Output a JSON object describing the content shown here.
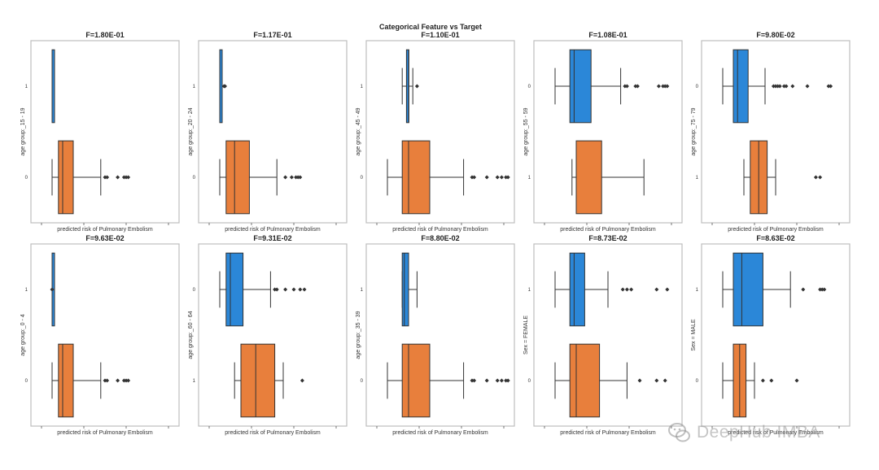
{
  "chart_data": {
    "suptitle": "Categorical Feature vs Target",
    "type": "boxplot",
    "orientation": "horizontal",
    "colors": {
      "first_category": "#2b87d8",
      "second_category": "#e87f3c"
    },
    "panels": [
      {
        "title": "F=1.80E-01",
        "xlabel": "predicted risk of Pulmonary Embolism",
        "ylabel": "age group:_15 - 19",
        "categories": [
          {
            "label": "1",
            "color": "#2b87d8",
            "wlo": 0.05,
            "q1": 0.05,
            "med": 0.05,
            "q3": 0.06,
            "whi": 0.06,
            "fliers": []
          },
          {
            "label": "0",
            "color": "#e87f3c",
            "wlo": 0.05,
            "q1": 0.08,
            "med": 0.1,
            "q3": 0.15,
            "whi": 0.28,
            "fliers": [
              0.3,
              0.31,
              0.36,
              0.39,
              0.4,
              0.41
            ]
          }
        ]
      },
      {
        "title": "F=1.17E-01",
        "xlabel": "predicted risk of Pulmonary Embolism",
        "ylabel": "age group:_20 - 24",
        "categories": [
          {
            "label": "1",
            "color": "#2b87d8",
            "wlo": 0.05,
            "q1": 0.05,
            "med": 0.05,
            "q3": 0.06,
            "whi": 0.06,
            "fliers": [
              0.07,
              0.075
            ]
          },
          {
            "label": "0",
            "color": "#e87f3c",
            "wlo": 0.05,
            "q1": 0.08,
            "med": 0.12,
            "q3": 0.19,
            "whi": 0.32,
            "fliers": [
              0.36,
              0.39,
              0.41,
              0.42,
              0.43
            ]
          }
        ]
      },
      {
        "title": "F=1.10E-01",
        "xlabel": "predicted risk of Pulmonary Embolism",
        "ylabel": "age group:_45 - 49",
        "categories": [
          {
            "label": "1",
            "color": "#2b87d8",
            "wlo": 0.12,
            "q1": 0.14,
            "med": 0.15,
            "q3": 0.15,
            "whi": 0.17,
            "fliers": [
              0.19
            ]
          },
          {
            "label": "0",
            "color": "#e87f3c",
            "wlo": 0.05,
            "q1": 0.12,
            "med": 0.15,
            "q3": 0.25,
            "whi": 0.41,
            "fliers": [
              0.45,
              0.46,
              0.52,
              0.57,
              0.59,
              0.61,
              0.62
            ]
          }
        ]
      },
      {
        "title": "F=1.08E-01",
        "xlabel": "predicted risk of Pulmonary Embolism",
        "ylabel": "age group:_55 - 59",
        "categories": [
          {
            "label": "0",
            "color": "#2b87d8",
            "wlo": 0.05,
            "q1": 0.12,
            "med": 0.14,
            "q3": 0.22,
            "whi": 0.36,
            "fliers": [
              0.38,
              0.39,
              0.43,
              0.44,
              0.54,
              0.56,
              0.57,
              0.58
            ]
          },
          {
            "label": "1",
            "color": "#e87f3c",
            "wlo": 0.13,
            "q1": 0.15,
            "med": 0.15,
            "q3": 0.27,
            "whi": 0.47,
            "fliers": []
          }
        ]
      },
      {
        "title": "F=9.80E-02",
        "xlabel": "predicted risk of Pulmonary Embolism",
        "ylabel": "age group:_75 - 79",
        "categories": [
          {
            "label": "0",
            "color": "#2b87d8",
            "wlo": 0.05,
            "q1": 0.1,
            "med": 0.12,
            "q3": 0.17,
            "whi": 0.25,
            "fliers": [
              0.29,
              0.3,
              0.31,
              0.32,
              0.34,
              0.35,
              0.38,
              0.45,
              0.55,
              0.56
            ]
          },
          {
            "label": "1",
            "color": "#e87f3c",
            "wlo": 0.15,
            "q1": 0.18,
            "med": 0.22,
            "q3": 0.26,
            "whi": 0.3,
            "fliers": [
              0.49,
              0.51
            ]
          }
        ]
      },
      {
        "title": "F=9.63E-02",
        "xlabel": "predicted risk of Pulmonary Embolism",
        "ylabel": "age group:_0 - 4",
        "categories": [
          {
            "label": "1",
            "color": "#2b87d8",
            "wlo": 0.05,
            "q1": 0.05,
            "med": 0.05,
            "q3": 0.05,
            "whi": 0.05,
            "fliers": [
              0.05
            ]
          },
          {
            "label": "0",
            "color": "#e87f3c",
            "wlo": 0.05,
            "q1": 0.08,
            "med": 0.1,
            "q3": 0.15,
            "whi": 0.28,
            "fliers": [
              0.3,
              0.31,
              0.36,
              0.39,
              0.4,
              0.41
            ]
          }
        ]
      },
      {
        "title": "F=9.31E-02",
        "xlabel": "predicted risk of Pulmonary Embolism",
        "ylabel": "age group:_60 - 64",
        "categories": [
          {
            "label": "0",
            "color": "#2b87d8",
            "wlo": 0.05,
            "q1": 0.08,
            "med": 0.1,
            "q3": 0.16,
            "whi": 0.29,
            "fliers": [
              0.31,
              0.32,
              0.36,
              0.4,
              0.43,
              0.45
            ]
          },
          {
            "label": "1",
            "color": "#e87f3c",
            "wlo": 0.12,
            "q1": 0.15,
            "med": 0.22,
            "q3": 0.31,
            "whi": 0.35,
            "fliers": [
              0.44
            ]
          }
        ]
      },
      {
        "title": "F=8.80E-02",
        "xlabel": "predicted risk of Pulmonary Embolism",
        "ylabel": "age group:_35 - 39",
        "categories": [
          {
            "label": "1",
            "color": "#2b87d8",
            "wlo": 0.12,
            "q1": 0.12,
            "med": 0.13,
            "q3": 0.15,
            "whi": 0.19,
            "fliers": []
          },
          {
            "label": "0",
            "color": "#e87f3c",
            "wlo": 0.05,
            "q1": 0.12,
            "med": 0.15,
            "q3": 0.25,
            "whi": 0.41,
            "fliers": [
              0.45,
              0.46,
              0.52,
              0.57,
              0.59,
              0.61,
              0.62
            ]
          }
        ]
      },
      {
        "title": "F=8.73E-02",
        "xlabel": "predicted risk of Pulmonary Embolism",
        "ylabel": "Sex = FEMALE",
        "categories": [
          {
            "label": "1",
            "color": "#2b87d8",
            "wlo": 0.05,
            "q1": 0.12,
            "med": 0.14,
            "q3": 0.19,
            "whi": 0.3,
            "fliers": [
              0.37,
              0.39,
              0.41,
              0.53,
              0.58
            ]
          },
          {
            "label": "0",
            "color": "#e87f3c",
            "wlo": 0.05,
            "q1": 0.12,
            "med": 0.15,
            "q3": 0.26,
            "whi": 0.39,
            "fliers": [
              0.45,
              0.53,
              0.57
            ]
          }
        ]
      },
      {
        "title": "F=8.63E-02",
        "xlabel": "predicted risk of Pulmonary Embolism",
        "ylabel": "Sex = MALE",
        "categories": [
          {
            "label": "1",
            "color": "#2b87d8",
            "wlo": 0.05,
            "q1": 0.1,
            "med": 0.14,
            "q3": 0.24,
            "whi": 0.37,
            "fliers": [
              0.43,
              0.51,
              0.52,
              0.53
            ]
          },
          {
            "label": "0",
            "color": "#e87f3c",
            "wlo": 0.05,
            "q1": 0.1,
            "med": 0.13,
            "q3": 0.16,
            "whi": 0.2,
            "fliers": [
              0.24,
              0.28,
              0.4
            ]
          }
        ]
      }
    ]
  },
  "watermark": {
    "text": "DeepHub IMBA"
  }
}
